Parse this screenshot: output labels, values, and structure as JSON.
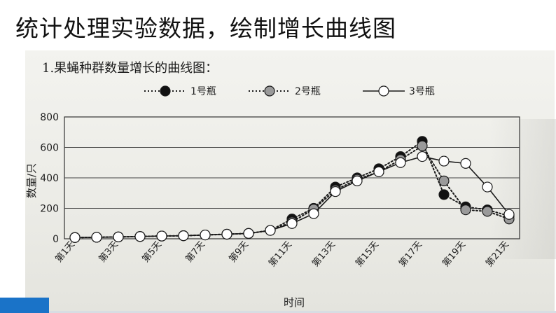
{
  "slide": {
    "title": "统计处理实验数据，绘制增长曲线图"
  },
  "chart_data": {
    "type": "line",
    "title": "1.果蝇种群数量增长的曲线图：",
    "xlabel": "时间",
    "ylabel": "数量/只",
    "ylim": [
      0,
      800
    ],
    "yticks": [
      0,
      200,
      400,
      600,
      800
    ],
    "grid": true,
    "legend_position": "top",
    "x": [
      1,
      2,
      3,
      4,
      5,
      6,
      7,
      8,
      9,
      10,
      11,
      12,
      13,
      14,
      15,
      16,
      17,
      18,
      19,
      20,
      21
    ],
    "x_tick_labels": [
      "第1天",
      "第3天",
      "第5天",
      "第7天",
      "第9天",
      "第11天",
      "第13天",
      "第15天",
      "第17天",
      "第19天",
      "第21天"
    ],
    "series": [
      {
        "name": "1号瓶",
        "line_style": "dotted",
        "marker_fill": "#111111",
        "values": [
          8,
          10,
          12,
          15,
          18,
          20,
          25,
          30,
          35,
          55,
          130,
          200,
          340,
          400,
          460,
          540,
          640,
          290,
          210,
          190,
          150
        ]
      },
      {
        "name": "2号瓶",
        "line_style": "dotted",
        "marker_fill": "#9a9a9a",
        "values": [
          8,
          10,
          12,
          15,
          18,
          20,
          25,
          30,
          35,
          55,
          110,
          195,
          320,
          390,
          440,
          520,
          610,
          380,
          190,
          180,
          130
        ]
      },
      {
        "name": "3号瓶",
        "line_style": "solid",
        "marker_fill": "#ffffff",
        "values": [
          8,
          10,
          12,
          15,
          18,
          20,
          25,
          30,
          35,
          55,
          100,
          165,
          310,
          380,
          440,
          500,
          540,
          510,
          495,
          340,
          160
        ]
      }
    ]
  }
}
